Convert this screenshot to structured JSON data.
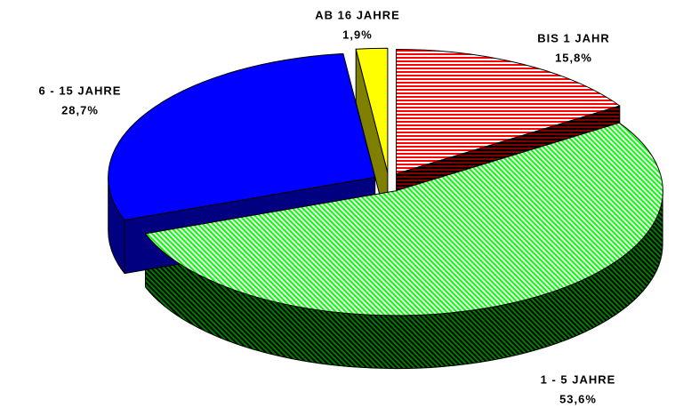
{
  "chart_data": {
    "type": "pie",
    "categories": [
      "BIS 1 JAHR",
      "1 - 5 JAHRE",
      "6 - 15 JAHRE",
      "AB 16 JAHRE"
    ],
    "values": [
      15.8,
      53.6,
      28.7,
      1.9
    ],
    "value_labels": [
      "15,8%",
      "53,6%",
      "28,7%",
      "1,9%"
    ],
    "colors": [
      "#ff0000",
      "#00ff00",
      "#0000ff",
      "#ffff00"
    ],
    "three_d": true,
    "exploded": true
  }
}
